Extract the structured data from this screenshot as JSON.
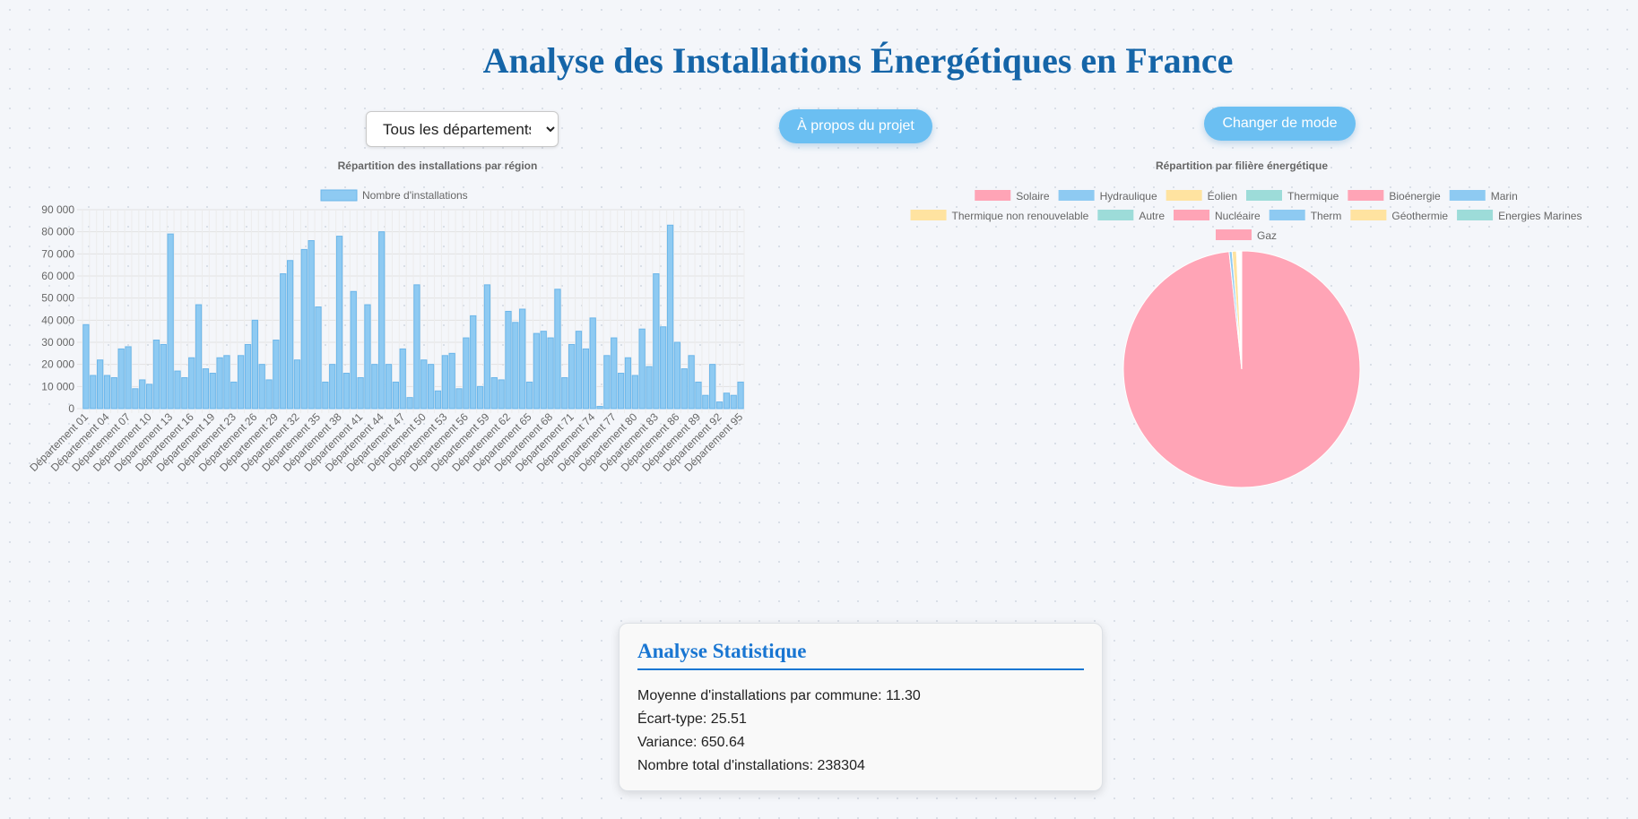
{
  "page_title": "Analyse des Installations Énergétiques en France",
  "controls": {
    "select_value": "Tous les départements",
    "about_label": "À propos du projet",
    "mode_label": "Changer de mode",
    "button_color": "#6bbff2"
  },
  "colors": {
    "title": "#1565a8",
    "bar_fill": "#8ecaf2",
    "bar_border": "#6bb6ea",
    "accent": "#1976d2"
  },
  "stats": {
    "title": "Analyse Statistique",
    "lines": [
      "Moyenne d'installations par commune: 11.30",
      "Écart-type: 25.51",
      "Variance: 650.64",
      "Nombre total d'installations: 238304"
    ]
  },
  "chart_data": [
    {
      "type": "bar",
      "title": "Répartition des installations par région",
      "legend": [
        "Nombre d'installations"
      ],
      "ylim": [
        0,
        90000
      ],
      "yticks": [
        0,
        10000,
        20000,
        30000,
        40000,
        50000,
        60000,
        70000,
        80000,
        90000
      ],
      "ytick_labels": [
        "0",
        "10 000",
        "20 000",
        "30 000",
        "40 000",
        "50 000",
        "60 000",
        "70 000",
        "80 000",
        "90 000"
      ],
      "xtick_labels": [
        "Département 01",
        "Département 04",
        "Département 07",
        "Département 10",
        "Département 13",
        "Département 16",
        "Département 19",
        "Département 23",
        "Département 26",
        "Département 29",
        "Département 32",
        "Département 35",
        "Département 38",
        "Département 41",
        "Département 44",
        "Département 47",
        "Département 50",
        "Département 53",
        "Département 56",
        "Département 59",
        "Département 62",
        "Département 65",
        "Département 68",
        "Département 71",
        "Département 74",
        "Département 77",
        "Département 80",
        "Département 83",
        "Département 86",
        "Département 89",
        "Département 92",
        "Département 95"
      ],
      "grid": true,
      "legend_position": "top",
      "series": [
        {
          "name": "Nombre d'installations",
          "values": [
            38000,
            15000,
            22000,
            15000,
            14000,
            27000,
            28000,
            9000,
            13000,
            11000,
            31000,
            29000,
            79000,
            17000,
            14000,
            23000,
            47000,
            18000,
            16000,
            23000,
            24000,
            12000,
            24000,
            29000,
            40000,
            20000,
            13000,
            31000,
            61000,
            67000,
            22000,
            72000,
            76000,
            46000,
            12000,
            20000,
            78000,
            16000,
            53000,
            14000,
            47000,
            20000,
            80000,
            20000,
            12000,
            27000,
            5000,
            56000,
            22000,
            20000,
            8000,
            24000,
            25000,
            9000,
            32000,
            42000,
            10000,
            56000,
            14000,
            13000,
            44000,
            39000,
            45000,
            12000,
            34000,
            35000,
            32000,
            54000,
            14000,
            29000,
            35000,
            27000,
            41000,
            1000,
            24000,
            32000,
            16000,
            23000,
            15000,
            36000,
            19000,
            61000,
            37000,
            83000,
            30000,
            18000,
            24000,
            12000,
            6000,
            20000,
            3000,
            7000,
            6000,
            12000
          ]
        }
      ]
    },
    {
      "type": "pie",
      "title": "Répartition par filière énergétique",
      "legend_position": "top",
      "labels": [
        "Solaire",
        "Hydraulique",
        "Éolien",
        "Thermique",
        "Bioénergie",
        "Marin",
        "Thermique non renouvelable",
        "Autre",
        "Nucléaire",
        "Therm",
        "Géothermie",
        "Energies Marines",
        "Gaz"
      ],
      "legend_colors": [
        "#ffa4b6",
        "#8ecaf2",
        "#ffe3a0",
        "#9ddcd9",
        "#ffa4b6",
        "#8ecaf2",
        "#ffe3a0",
        "#9ddcd9",
        "#ffa4b6",
        "#8ecaf2",
        "#ffe3a0",
        "#9ddcd9",
        "#ffa4b6"
      ],
      "values": [
        0.982,
        0.004,
        0.006,
        0.001,
        0.001,
        0.0005,
        0.001,
        0.0005,
        0.0005,
        0.0005,
        0.0005,
        0.0005,
        0.001
      ]
    }
  ]
}
